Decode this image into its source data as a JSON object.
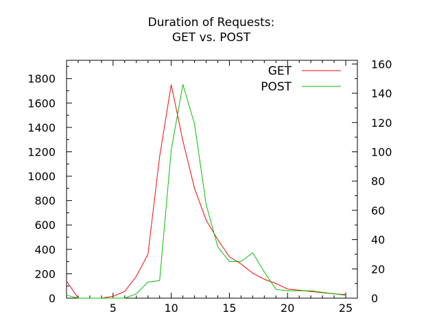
{
  "chart_data": {
    "type": "line",
    "title_lines": [
      "Duration of Requests:",
      "GET vs. POST"
    ],
    "xlabel": "",
    "ylabel": "",
    "y2label": "",
    "x_range": [
      1,
      26
    ],
    "y_range": [
      0,
      1950
    ],
    "y2_range": [
      0,
      162.5
    ],
    "x_ticks": [
      5,
      10,
      15,
      20,
      25
    ],
    "y_ticks": [
      0,
      200,
      400,
      600,
      800,
      1000,
      1200,
      1400,
      1600,
      1800
    ],
    "y2_ticks": [
      0,
      20,
      40,
      60,
      80,
      100,
      120,
      140,
      160
    ],
    "legend_position": "top-right",
    "grid": false,
    "series": [
      {
        "name": "GET",
        "axis": "y",
        "color": "#ff0000",
        "x": [
          1,
          2,
          3,
          4,
          5,
          6,
          7,
          8,
          9,
          10,
          11,
          12,
          13,
          14,
          15,
          16,
          17,
          18,
          19,
          20,
          21,
          22,
          23,
          24,
          25
        ],
        "y": [
          140,
          0,
          0,
          0,
          15,
          55,
          180,
          360,
          1160,
          1750,
          1290,
          900,
          640,
          480,
          340,
          280,
          205,
          155,
          120,
          75,
          65,
          55,
          45,
          35,
          30
        ]
      },
      {
        "name": "POST",
        "axis": "y2",
        "color": "#00c000",
        "x": [
          1,
          2,
          3,
          4,
          5,
          6,
          7,
          8,
          9,
          10,
          11,
          12,
          13,
          14,
          15,
          16,
          17,
          18,
          19,
          20,
          21,
          22,
          23,
          24,
          25
        ],
        "y": [
          2,
          0,
          0,
          0,
          0,
          0,
          3,
          11,
          12,
          101,
          146,
          119,
          64,
          35,
          25,
          25,
          31,
          18,
          6,
          5,
          5,
          5,
          4,
          3,
          2
        ]
      }
    ]
  }
}
